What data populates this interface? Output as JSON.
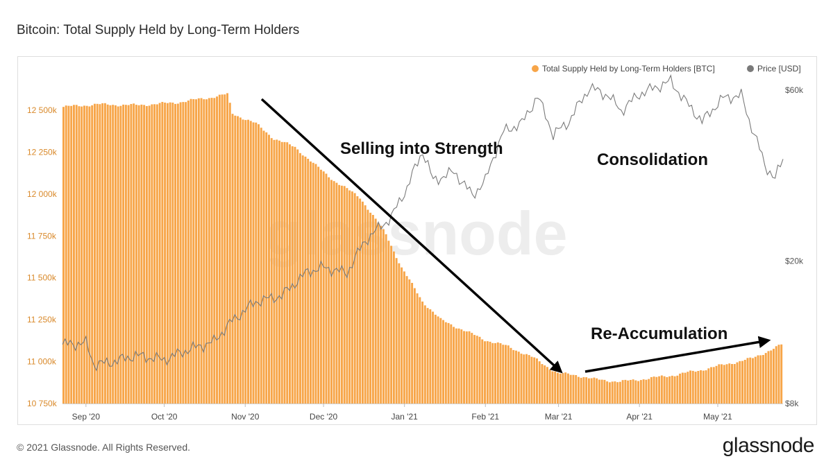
{
  "header": {
    "title": "Bitcoin: Total Supply Held by Long-Term Holders"
  },
  "footer": {
    "copyright": "© 2021 Glassnode. All Rights Reserved.",
    "brand": "glassnode"
  },
  "watermark": "glassnode",
  "colors": {
    "bars": "#f7a548",
    "price": "#7a7a7a",
    "left_axis_text": "#d9892a",
    "arrow": "#000000"
  },
  "chart_data": {
    "type": "bar",
    "title": "Bitcoin: Total Supply Held by Long-Term Holders",
    "legend_position": "top-right",
    "left_axis": {
      "ticks": [
        "12 500k",
        "12 250k",
        "12 000k",
        "11 750k",
        "11 500k",
        "11 250k",
        "11 000k",
        "10 750k"
      ],
      "values": [
        12500,
        12250,
        12000,
        11750,
        11500,
        11250,
        11000,
        10750
      ],
      "ylim": [
        10750,
        12620
      ]
    },
    "right_axis": {
      "scale": "log",
      "ticks": [
        "$60k",
        "$20k",
        "$8k"
      ],
      "values": [
        60000,
        20000,
        8000
      ],
      "ylim": [
        8000,
        60000
      ]
    },
    "x_ticks": [
      "Sep '20",
      "Oct '20",
      "Nov '20",
      "Dec '20",
      "Jan '21",
      "Feb '21",
      "Mar '21",
      "Apr '21",
      "May '21"
    ],
    "x_tick_dates": [
      "2020-09-01",
      "2020-10-01",
      "2020-11-01",
      "2020-12-01",
      "2021-01-01",
      "2021-02-01",
      "2021-03-01",
      "2021-04-01",
      "2021-05-01"
    ],
    "x_range": [
      "2020-08-23",
      "2021-05-26"
    ],
    "series": [
      {
        "name": "Total Supply Held by Long-Term Holders [BTC]",
        "axis": "left",
        "type": "bar",
        "unit": "BTC (thousands)",
        "points": [
          [
            "2020-08-23",
            12520
          ],
          [
            "2020-09-05",
            12535
          ],
          [
            "2020-09-20",
            12530
          ],
          [
            "2020-10-05",
            12545
          ],
          [
            "2020-10-18",
            12575
          ],
          [
            "2020-10-25",
            12595
          ],
          [
            "2020-10-27",
            12480
          ],
          [
            "2020-11-05",
            12420
          ],
          [
            "2020-11-12",
            12330
          ],
          [
            "2020-11-20",
            12280
          ],
          [
            "2020-11-28",
            12170
          ],
          [
            "2020-12-05",
            12080
          ],
          [
            "2020-12-15",
            11980
          ],
          [
            "2020-12-25",
            11760
          ],
          [
            "2020-12-31",
            11560
          ],
          [
            "2021-01-08",
            11360
          ],
          [
            "2021-01-15",
            11250
          ],
          [
            "2021-01-22",
            11200
          ],
          [
            "2021-02-01",
            11130
          ],
          [
            "2021-02-10",
            11090
          ],
          [
            "2021-02-20",
            11020
          ],
          [
            "2021-03-01",
            10930
          ],
          [
            "2021-03-08",
            10920
          ],
          [
            "2021-03-15",
            10895
          ],
          [
            "2021-03-25",
            10880
          ],
          [
            "2021-04-05",
            10900
          ],
          [
            "2021-04-15",
            10920
          ],
          [
            "2021-04-25",
            10950
          ],
          [
            "2021-05-05",
            10985
          ],
          [
            "2021-05-15",
            11020
          ],
          [
            "2021-05-26",
            11100
          ]
        ]
      },
      {
        "name": "Price [USD]",
        "axis": "right",
        "type": "line",
        "unit": "USD",
        "points": [
          [
            "2020-08-23",
            11700
          ],
          [
            "2020-09-01",
            11800
          ],
          [
            "2020-09-04",
            10300
          ],
          [
            "2020-09-10",
            10400
          ],
          [
            "2020-09-20",
            10900
          ],
          [
            "2020-10-01",
            10600
          ],
          [
            "2020-10-10",
            11300
          ],
          [
            "2020-10-20",
            11900
          ],
          [
            "2020-10-27",
            13600
          ],
          [
            "2020-11-05",
            15400
          ],
          [
            "2020-11-15",
            16000
          ],
          [
            "2020-11-25",
            18700
          ],
          [
            "2020-12-01",
            19200
          ],
          [
            "2020-12-10",
            18500
          ],
          [
            "2020-12-17",
            22800
          ],
          [
            "2020-12-27",
            26500
          ],
          [
            "2021-01-02",
            32000
          ],
          [
            "2021-01-08",
            40500
          ],
          [
            "2021-01-12",
            33500
          ],
          [
            "2021-01-20",
            35500
          ],
          [
            "2021-01-27",
            30500
          ],
          [
            "2021-02-01",
            33500
          ],
          [
            "2021-02-08",
            46000
          ],
          [
            "2021-02-15",
            48500
          ],
          [
            "2021-02-21",
            57500
          ],
          [
            "2021-02-27",
            45000
          ],
          [
            "2021-03-05",
            49000
          ],
          [
            "2021-03-13",
            61000
          ],
          [
            "2021-03-20",
            58000
          ],
          [
            "2021-03-25",
            52500
          ],
          [
            "2021-04-01",
            58500
          ],
          [
            "2021-04-13",
            63500
          ],
          [
            "2021-04-18",
            56500
          ],
          [
            "2021-04-25",
            49000
          ],
          [
            "2021-05-03",
            57000
          ],
          [
            "2021-05-10",
            58000
          ],
          [
            "2021-05-13",
            49500
          ],
          [
            "2021-05-19",
            37000
          ],
          [
            "2021-05-23",
            34000
          ],
          [
            "2021-05-26",
            38500
          ]
        ]
      }
    ],
    "annotations": [
      {
        "text": "Selling into Strength"
      },
      {
        "text": "Consolidation"
      },
      {
        "text": "Re-Accumulation"
      }
    ]
  }
}
